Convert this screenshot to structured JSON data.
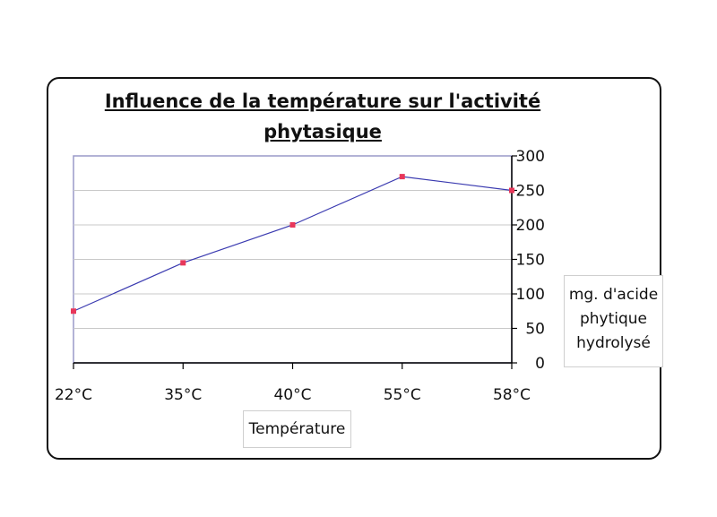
{
  "chart_data": {
    "type": "line",
    "title_lines": [
      "Influence de la température sur l'activité",
      "phytasique"
    ],
    "xlabel": "Température",
    "ylabel_lines": [
      "mg. d'acide",
      "phytique",
      "hydrolysé"
    ],
    "categories": [
      "22°C",
      "35°C",
      "40°C",
      "55°C",
      "58°C"
    ],
    "series": [
      {
        "values": [
          75,
          145,
          200,
          270,
          250
        ],
        "line_color": "#3a3ab0",
        "marker_color": "#e8375a"
      }
    ],
    "ylim": [
      0,
      300
    ],
    "yticks": [
      0,
      50,
      100,
      150,
      200,
      250,
      300
    ],
    "y_axis_side": "right",
    "grid": true
  }
}
